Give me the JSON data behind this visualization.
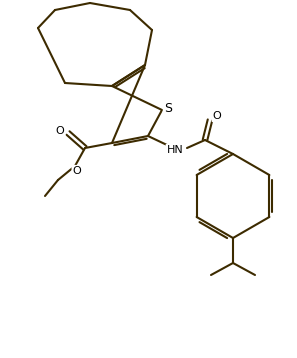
{
  "bg_color": "#ffffff",
  "bond_color": "#3d2b00",
  "lw": 1.5,
  "figsize": [
    2.97,
    3.58
  ],
  "dpi": 100,
  "S_label": "S",
  "HN_label": "HN",
  "O_labels": [
    "O",
    "O",
    "O"
  ],
  "text_color": "#000000",
  "s_color": "#ffcc00"
}
